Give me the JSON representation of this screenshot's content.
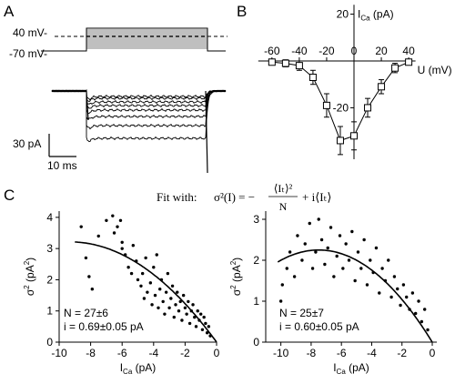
{
  "panels": {
    "A": {
      "label": "A",
      "voltage_labels": [
        "40 mV-",
        "-70 mV-"
      ],
      "scalebar_y_label": "30 pA",
      "scalebar_x_label": "10 ms"
    },
    "B": {
      "label": "B"
    },
    "C": {
      "label": "C"
    }
  },
  "formula": {
    "prefix": "Fit with:",
    "lhs": "σ²(I) = −",
    "numerator": "⟨Iₜ⟩²",
    "denominator": "N",
    "rhs": "+ i⟨Iₜ⟩"
  },
  "chart_data": [
    {
      "id": "B",
      "type": "line",
      "xlabel": "U (mV)",
      "ylabel": "I_Ca (pA)",
      "xlim": [
        -70,
        45
      ],
      "ylim": [
        -42,
        24
      ],
      "x_ticks": [
        -60,
        -40,
        -20,
        0,
        20,
        40
      ],
      "y_ticks": [
        20,
        -20
      ],
      "marker": "open-square",
      "error_bars": true,
      "series": [
        {
          "x": [
            -60,
            -50,
            -40,
            -30,
            -20,
            -10,
            0,
            10,
            20,
            30,
            40
          ],
          "y": [
            -0.5,
            -1,
            -2,
            -7,
            -19,
            -34,
            -32,
            -20,
            -11,
            -3,
            -0.5
          ],
          "err": [
            1,
            1.5,
            2,
            3,
            5,
            6,
            6,
            4,
            3,
            2,
            1
          ]
        }
      ]
    },
    {
      "id": "C-left",
      "type": "scatter",
      "xlabel": "I_Ca (pA)",
      "ylabel": "σ² (pA²)",
      "xlim": [
        -10,
        0
      ],
      "ylim": [
        0,
        4.2
      ],
      "x_ticks": [
        -10,
        -8,
        -6,
        -4,
        -2,
        0
      ],
      "y_ticks": [
        0,
        1,
        2,
        3,
        4
      ],
      "annotations": [
        "N = 27±6",
        "i = 0.69±0.05 pA"
      ],
      "fit": {
        "N": 27,
        "i": 0.69,
        "x_range": [
          -9,
          0
        ]
      },
      "points": [
        [
          -8.6,
          3.7
        ],
        [
          -8.3,
          2.7
        ],
        [
          -8.1,
          2.1
        ],
        [
          -7.9,
          1.7
        ],
        [
          -7.5,
          3.4
        ],
        [
          -7.0,
          3.9
        ],
        [
          -6.6,
          4.05
        ],
        [
          -6.5,
          3.5
        ],
        [
          -6.3,
          3.7
        ],
        [
          -6.1,
          3.9
        ],
        [
          -6.0,
          3.0
        ],
        [
          -6.0,
          3.2
        ],
        [
          -5.8,
          2.8
        ],
        [
          -5.6,
          2.4
        ],
        [
          -5.4,
          2.2
        ],
        [
          -5.3,
          3.1
        ],
        [
          -5.1,
          2.6
        ],
        [
          -5.0,
          2.0
        ],
        [
          -4.8,
          1.8
        ],
        [
          -4.7,
          2.2
        ],
        [
          -4.6,
          1.4
        ],
        [
          -4.5,
          2.7
        ],
        [
          -4.4,
          1.6
        ],
        [
          -4.2,
          1.9
        ],
        [
          -4.1,
          1.2
        ],
        [
          -4.0,
          2.4
        ],
        [
          -3.9,
          1.5
        ],
        [
          -3.8,
          2.8
        ],
        [
          -3.7,
          1.1
        ],
        [
          -3.6,
          1.7
        ],
        [
          -3.5,
          2.0
        ],
        [
          -3.4,
          1.3
        ],
        [
          -3.3,
          0.9
        ],
        [
          -3.2,
          1.6
        ],
        [
          -3.1,
          2.2
        ],
        [
          -3.0,
          1.1
        ],
        [
          -2.9,
          1.4
        ],
        [
          -2.8,
          1.8
        ],
        [
          -2.7,
          0.8
        ],
        [
          -2.6,
          1.2
        ],
        [
          -2.5,
          1.6
        ],
        [
          -2.4,
          1.0
        ],
        [
          -2.3,
          1.3
        ],
        [
          -2.2,
          0.7
        ],
        [
          -2.1,
          1.5
        ],
        [
          -2.0,
          1.1
        ],
        [
          -1.9,
          0.9
        ],
        [
          -1.8,
          1.3
        ],
        [
          -1.7,
          0.6
        ],
        [
          -1.6,
          1.0
        ],
        [
          -1.5,
          1.2
        ],
        [
          -1.4,
          0.8
        ],
        [
          -1.3,
          0.5
        ],
        [
          -1.2,
          1.0
        ],
        [
          -1.1,
          0.7
        ],
        [
          -1.0,
          0.9
        ],
        [
          -0.9,
          0.4
        ],
        [
          -0.8,
          0.8
        ],
        [
          -0.7,
          0.6
        ],
        [
          -0.6,
          0.3
        ],
        [
          -0.5,
          0.5
        ],
        [
          -0.4,
          0.2
        ]
      ]
    },
    {
      "id": "C-right",
      "type": "scatter",
      "xlabel": "I_Ca (pA)",
      "ylabel": "σ² (pA²)",
      "xlim": [
        -11,
        0.3
      ],
      "ylim": [
        0,
        3.2
      ],
      "x_ticks": [
        -10,
        -8,
        -6,
        -4,
        -2,
        0
      ],
      "y_ticks": [
        0,
        1,
        2,
        3
      ],
      "annotations": [
        "N = 25±7",
        "i = 0.60±0.05 pA"
      ],
      "fit": {
        "N": 25,
        "i": 0.6,
        "x_range": [
          -10.2,
          0
        ]
      },
      "points": [
        [
          -10.0,
          1.0
        ],
        [
          -9.9,
          1.4
        ],
        [
          -9.6,
          1.8
        ],
        [
          -9.4,
          2.2
        ],
        [
          -9.1,
          1.6
        ],
        [
          -8.9,
          2.6
        ],
        [
          -8.6,
          2.0
        ],
        [
          -8.4,
          2.4
        ],
        [
          -8.1,
          2.9
        ],
        [
          -7.9,
          1.8
        ],
        [
          -7.7,
          2.2
        ],
        [
          -7.5,
          3.0
        ],
        [
          -7.3,
          2.5
        ],
        [
          -7.1,
          1.9
        ],
        [
          -6.9,
          2.3
        ],
        [
          -6.7,
          2.8
        ],
        [
          -6.5,
          1.6
        ],
        [
          -6.3,
          2.1
        ],
        [
          -6.1,
          2.6
        ],
        [
          -5.9,
          1.8
        ],
        [
          -5.7,
          2.4
        ],
        [
          -5.5,
          2.0
        ],
        [
          -5.3,
          2.7
        ],
        [
          -5.1,
          1.5
        ],
        [
          -4.9,
          2.2
        ],
        [
          -4.7,
          1.8
        ],
        [
          -4.5,
          2.5
        ],
        [
          -4.3,
          1.4
        ],
        [
          -4.1,
          2.0
        ],
        [
          -3.9,
          1.7
        ],
        [
          -3.7,
          2.3
        ],
        [
          -3.5,
          1.2
        ],
        [
          -3.3,
          1.8
        ],
        [
          -3.1,
          1.5
        ],
        [
          -2.9,
          2.0
        ],
        [
          -2.7,
          1.1
        ],
        [
          -2.5,
          1.6
        ],
        [
          -2.3,
          1.3
        ],
        [
          -2.1,
          0.9
        ],
        [
          -1.9,
          1.4
        ],
        [
          -1.7,
          1.1
        ],
        [
          -1.5,
          0.8
        ],
        [
          -1.3,
          1.2
        ],
        [
          -1.1,
          0.7
        ],
        [
          -0.9,
          1.0
        ],
        [
          -0.7,
          0.5
        ],
        [
          -0.5,
          0.8
        ],
        [
          -0.3,
          0.3
        ]
      ]
    }
  ]
}
